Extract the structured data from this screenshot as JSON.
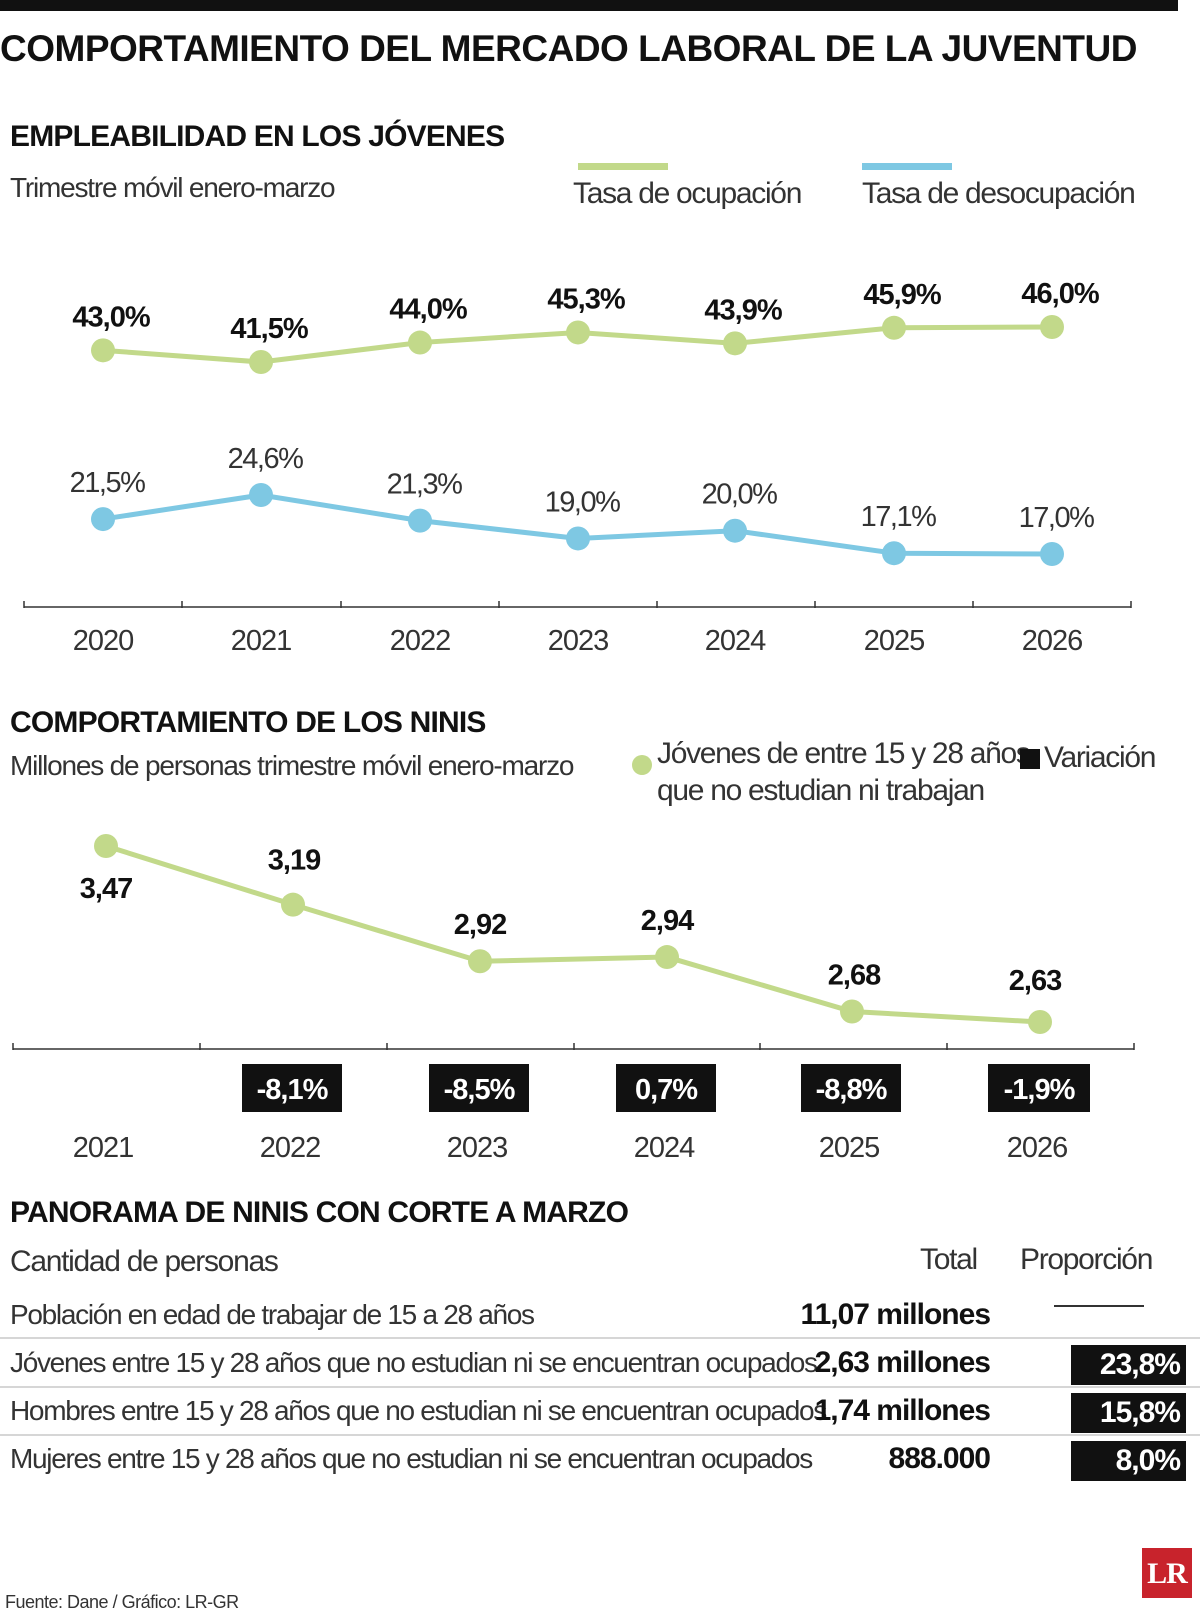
{
  "title": "COMPORTAMIENTO DEL MERCADO LABORAL DE LA JUVENTUD",
  "section1": {
    "title": "EMPLEABILIDAD EN LOS JÓVENES",
    "subtitle": "Trimestre móvil enero-marzo",
    "legend": [
      {
        "label": "Tasa de ocupación",
        "color": "#c2d98a"
      },
      {
        "label": "Tasa de desocupación",
        "color": "#7ec8e3"
      }
    ]
  },
  "section2": {
    "title": "COMPORTAMIENTO DE LOS NINIS",
    "subtitle": "Millones de personas trimestre móvil enero-marzo",
    "legend_series_line1": "Jóvenes de entre 15 y 28 años",
    "legend_series_line2": "que no estudian ni trabajan",
    "legend_variation": "Variación",
    "legend_series_icon": "circle-dot-icon",
    "legend_variation_icon": "black-square-icon"
  },
  "section3": {
    "title": "PANORAMA DE NINIS CON CORTE A MARZO",
    "col_label": "Cantidad de personas",
    "col_total": "Total",
    "col_proportion": "Proporción",
    "rows": [
      {
        "label": "Población en edad de trabajar de 15 a 28 años",
        "total": "11,07 millones",
        "proportion": ""
      },
      {
        "label": "Jóvenes entre 15 y 28 años que no estudian ni se encuentran ocupados",
        "total": "2,63 millones",
        "proportion": "23,8%"
      },
      {
        "label": "Hombres entre 15 y 28 años que no estudian ni se encuentran ocupados",
        "total": "1,74 millones",
        "proportion": "15,8%"
      },
      {
        "label": "Mujeres entre 15 y 28 años que no estudian ni se encuentran ocupados",
        "total": "888.000",
        "proportion": "8,0%"
      }
    ]
  },
  "source": "Fuente: Dane / Gráfico: LR-GR",
  "logo_text": "LR",
  "chart_data": [
    {
      "type": "line",
      "x": [
        "2020",
        "2021",
        "2022",
        "2023",
        "2024",
        "2025",
        "2026"
      ],
      "series": [
        {
          "name": "Tasa de ocupación",
          "values": [
            43.0,
            41.5,
            44.0,
            45.3,
            43.9,
            45.9,
            46.0
          ],
          "labels": [
            "43,0%",
            "41,5%",
            "44,0%",
            "45,3%",
            "43,9%",
            "45,9%",
            "46,0%"
          ],
          "color": "#c2d98a"
        },
        {
          "name": "Tasa de desocupación",
          "values": [
            21.5,
            24.6,
            21.3,
            19.0,
            20.0,
            17.1,
            17.0
          ],
          "labels": [
            "21,5%",
            "24,6%",
            "21,3%",
            "19,0%",
            "20,0%",
            "17,1%",
            "17,0%"
          ],
          "color": "#7ec8e3"
        }
      ]
    },
    {
      "type": "line",
      "x": [
        "2021",
        "2022",
        "2023",
        "2024",
        "2025",
        "2026"
      ],
      "series": [
        {
          "name": "Jóvenes de entre 15 y 28 años que no estudian ni trabajan",
          "values": [
            3.47,
            3.19,
            2.92,
            2.94,
            2.68,
            2.63
          ],
          "labels": [
            "3,47",
            "3,19",
            "2,92",
            "2,94",
            "2,68",
            "2,63"
          ],
          "color": "#c2d98a"
        },
        {
          "name": "Variación",
          "values": [
            null,
            -8.1,
            -8.5,
            0.7,
            -8.8,
            -1.9
          ],
          "labels": [
            "",
            "-8,1%",
            "-8,5%",
            "0,7%",
            "-8,8%",
            "-1,9%"
          ],
          "color": "#111111"
        }
      ]
    }
  ]
}
